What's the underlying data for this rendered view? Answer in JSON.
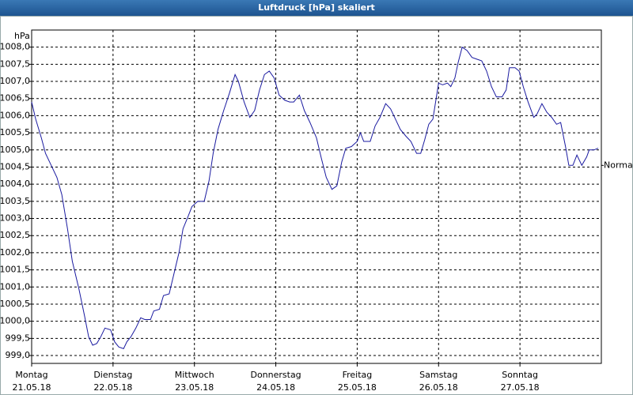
{
  "chart_data": {
    "type": "line",
    "title": "Luftdruck [hPa] skaliert",
    "y_label": "hPa",
    "color": "#1a1aa0",
    "grid": true,
    "xlim": [
      0,
      7
    ],
    "ylim": [
      998.77,
      1008.5
    ],
    "xticks": [
      {
        "value": 0,
        "label": "Montag",
        "date": "21.05.18"
      },
      {
        "value": 1,
        "label": "Dienstag",
        "date": "22.05.18"
      },
      {
        "value": 2,
        "label": "Mittwoch",
        "date": "23.05.18"
      },
      {
        "value": 3,
        "label": "Donnerstag",
        "date": "24.05.18"
      },
      {
        "value": 4,
        "label": "Freitag",
        "date": "25.05.18"
      },
      {
        "value": 5,
        "label": "Samstag",
        "date": "26.05.18"
      },
      {
        "value": 6,
        "label": "Sonntag",
        "date": "27.05.18"
      }
    ],
    "yticks": [
      {
        "value": 999,
        "label": "999,0"
      },
      {
        "value": 999.5,
        "label": "999,5"
      },
      {
        "value": 1000,
        "label": "1000,0"
      },
      {
        "value": 1000.5,
        "label": "1000,5"
      },
      {
        "value": 1001,
        "label": "1001,0"
      },
      {
        "value": 1001.5,
        "label": "1001,5"
      },
      {
        "value": 1002,
        "label": "1002,0"
      },
      {
        "value": 1002.5,
        "label": "1002,5"
      },
      {
        "value": 1003,
        "label": "1003,0"
      },
      {
        "value": 1003.5,
        "label": "1003,5"
      },
      {
        "value": 1004,
        "label": "1004,0"
      },
      {
        "value": 1004.5,
        "label": "1004,5"
      },
      {
        "value": 1005,
        "label": "1005,0"
      },
      {
        "value": 1005.5,
        "label": "1005,5"
      },
      {
        "value": 1006,
        "label": "1006,0"
      },
      {
        "value": 1006.5,
        "label": "1006,5"
      },
      {
        "value": 1007,
        "label": "1007,0"
      },
      {
        "value": 1007.5,
        "label": "1007,5"
      },
      {
        "value": 1008,
        "label": "1008,0"
      }
    ],
    "reference": {
      "label": "Normal",
      "value": 1004.55
    },
    "x": [
      0,
      0.05,
      0.12,
      0.17,
      0.24,
      0.31,
      0.37,
      0.44,
      0.5,
      0.58,
      0.65,
      0.7,
      0.75,
      0.8,
      0.85,
      0.9,
      0.97,
      1.02,
      1.07,
      1.13,
      1.17,
      1.22,
      1.28,
      1.34,
      1.39,
      1.46,
      1.5,
      1.57,
      1.62,
      1.69,
      1.75,
      1.81,
      1.86,
      1.92,
      1.97,
      2.04,
      2.12,
      2.18,
      2.23,
      2.29,
      2.36,
      2.43,
      2.5,
      2.54,
      2.61,
      2.68,
      2.74,
      2.8,
      2.86,
      2.92,
      2.98,
      3.04,
      3.11,
      3.17,
      3.22,
      3.29,
      3.35,
      3.42,
      3.5,
      3.56,
      3.62,
      3.69,
      3.75,
      3.81,
      3.86,
      3.93,
      4.0,
      4.04,
      4.08,
      4.16,
      4.22,
      4.28,
      4.35,
      4.41,
      4.47,
      4.53,
      4.6,
      4.66,
      4.73,
      4.78,
      4.83,
      4.88,
      4.93,
      5.0,
      5.05,
      5.11,
      5.15,
      5.2,
      5.24,
      5.29,
      5.35,
      5.41,
      5.47,
      5.53,
      5.59,
      5.65,
      5.71,
      5.78,
      5.83,
      5.87,
      5.94,
      5.99,
      6.04,
      6.1,
      6.17,
      6.21,
      6.27,
      6.33,
      6.39,
      6.45,
      6.5,
      6.56,
      6.6,
      6.65,
      6.7,
      6.76,
      6.82,
      6.85,
      6.91,
      6.96
    ],
    "values": [
      1006.4,
      1005.9,
      1005.35,
      1004.9,
      1004.55,
      1004.2,
      1003.7,
      1002.7,
      1001.75,
      1000.95,
      1000.15,
      999.55,
      999.3,
      999.35,
      999.55,
      999.8,
      999.75,
      999.4,
      999.25,
      999.2,
      999.4,
      999.55,
      999.8,
      1000.1,
      1000.05,
      1000.05,
      1000.3,
      1000.35,
      1000.75,
      1000.8,
      1001.4,
      1002.0,
      1002.7,
      1003.05,
      1003.35,
      1003.5,
      1003.5,
      1004.1,
      1004.9,
      1005.6,
      1006.15,
      1006.65,
      1007.2,
      1007.0,
      1006.4,
      1005.95,
      1006.15,
      1006.75,
      1007.2,
      1007.3,
      1007.1,
      1006.6,
      1006.45,
      1006.4,
      1006.4,
      1006.6,
      1006.15,
      1005.8,
      1005.35,
      1004.75,
      1004.2,
      1003.85,
      1003.95,
      1004.65,
      1005.05,
      1005.1,
      1005.25,
      1005.5,
      1005.25,
      1005.25,
      1005.7,
      1005.95,
      1006.35,
      1006.2,
      1005.9,
      1005.6,
      1005.4,
      1005.25,
      1004.9,
      1004.9,
      1005.3,
      1005.75,
      1005.9,
      1006.95,
      1006.9,
      1006.95,
      1006.85,
      1007.1,
      1007.55,
      1008.0,
      1007.9,
      1007.7,
      1007.65,
      1007.6,
      1007.3,
      1006.85,
      1006.55,
      1006.55,
      1006.75,
      1007.4,
      1007.4,
      1007.3,
      1006.85,
      1006.4,
      1005.95,
      1006.05,
      1006.35,
      1006.1,
      1005.95,
      1005.75,
      1005.8,
      1005.1,
      1004.55,
      1004.55,
      1004.85,
      1004.55,
      1004.8,
      1005.0,
      1005.0,
      1005.05
    ]
  }
}
